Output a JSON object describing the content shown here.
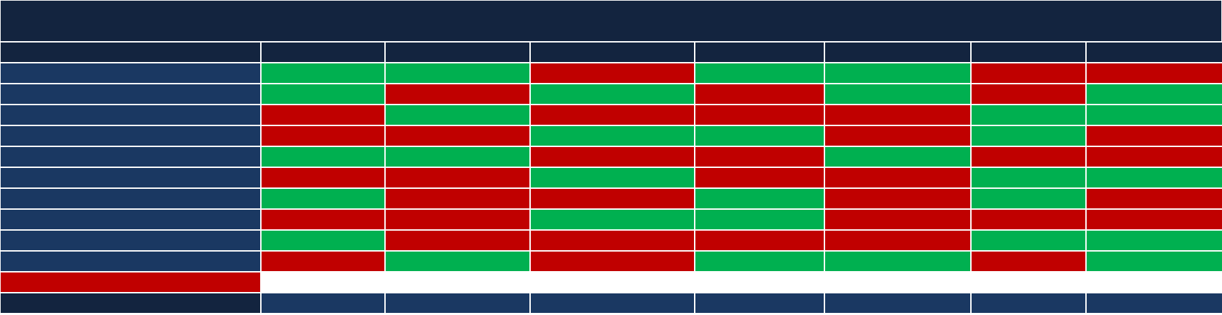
{
  "colors": {
    "title_bar": "#13243f",
    "header": "#13243f",
    "row_label": "#1a3862",
    "pass": "#00b050",
    "fail": "#c00000",
    "footer_label": "#13243f",
    "footer": "#1a3862"
  },
  "column_count": 7,
  "rows": [
    [
      "g",
      "g",
      "r",
      "g",
      "g",
      "r",
      "r"
    ],
    [
      "g",
      "r",
      "g",
      "r",
      "g",
      "r",
      "g"
    ],
    [
      "r",
      "g",
      "r",
      "r",
      "r",
      "g",
      "g"
    ],
    [
      "r",
      "r",
      "g",
      "g",
      "r",
      "g",
      "r"
    ],
    [
      "g",
      "g",
      "r",
      "r",
      "g",
      "r",
      "r"
    ],
    [
      "r",
      "r",
      "g",
      "r",
      "r",
      "g",
      "g"
    ],
    [
      "g",
      "r",
      "r",
      "g",
      "r",
      "g",
      "r"
    ],
    [
      "r",
      "r",
      "g",
      "g",
      "r",
      "r",
      "r"
    ],
    [
      "g",
      "r",
      "r",
      "r",
      "r",
      "g",
      "g"
    ],
    [
      "r",
      "g",
      "r",
      "g",
      "g",
      "r",
      "g"
    ]
  ],
  "summary_row_label_status": "r"
}
